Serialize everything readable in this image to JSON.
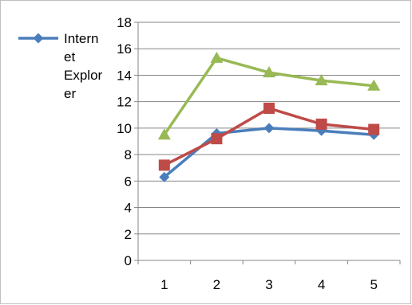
{
  "chart_data": {
    "type": "line",
    "categories": [
      "1",
      "2",
      "3",
      "4",
      "5"
    ],
    "series": [
      {
        "name": "Internet Explorer",
        "legend_lines": [
          "Intern",
          "et",
          "Explor",
          "er"
        ],
        "values": [
          6.3,
          9.6,
          10.0,
          9.8,
          9.5
        ],
        "color": "#4a7ebb",
        "marker": "diamond"
      },
      {
        "values": [
          7.2,
          9.2,
          11.5,
          10.3,
          9.9
        ],
        "color": "#be4b48",
        "marker": "square"
      },
      {
        "values": [
          9.5,
          15.3,
          14.2,
          13.6,
          13.2
        ],
        "color": "#98b954",
        "marker": "triangle"
      }
    ],
    "y_ticks": [
      "0",
      "2",
      "4",
      "6",
      "8",
      "10",
      "12",
      "14",
      "16",
      "18"
    ],
    "ylim": [
      0,
      18
    ],
    "grid": "horizontal",
    "legend_position": "left",
    "title": "",
    "xlabel": "",
    "ylabel": ""
  }
}
